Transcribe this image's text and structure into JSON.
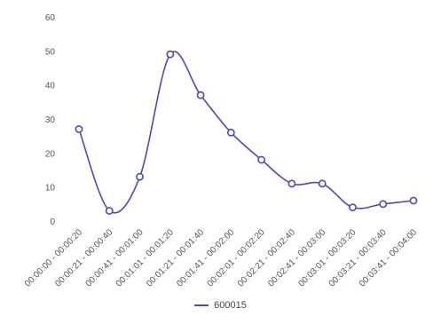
{
  "chart_data": {
    "type": "line",
    "categories": [
      "00:00:00 - 00:00:20",
      "00:00:21 - 00:00:40",
      "00:00:41 - 00:01:00",
      "00:01:01 - 00:01:20",
      "00:01:21 - 00:01:40",
      "00:01:41 - 00:02:00",
      "00:02:01 - 00:02:20",
      "00:02:21 - 00:02:40",
      "00:02:41 - 00:03:00",
      "00:03:01 - 00:03:20",
      "00:03:21 - 00:03:40",
      "00:03:41 - 00:04:00"
    ],
    "series": [
      {
        "name": "600015",
        "values": [
          27,
          3,
          13,
          49,
          37,
          26,
          18,
          11,
          11,
          4,
          5,
          6
        ],
        "color": "#4a4ab8"
      }
    ],
    "ylim": [
      0,
      60
    ],
    "yticks": [
      0,
      10,
      20,
      30,
      40,
      50,
      60
    ],
    "grid": false,
    "legend_position": "bottom-center",
    "smooth": true
  }
}
